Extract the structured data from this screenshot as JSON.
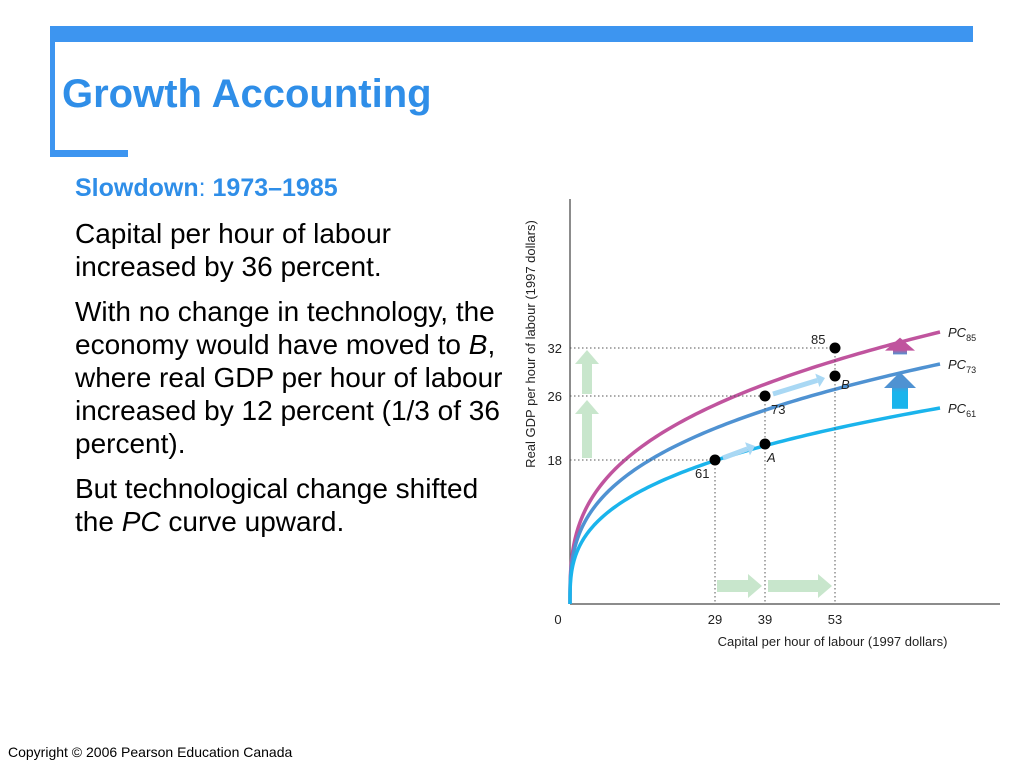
{
  "slide": {
    "title": "Growth Accounting",
    "subheading": {
      "label": "Slowdown",
      "colon": ":",
      "period": " 1973–1985"
    },
    "paragraphs": [
      [
        "Capital per hour of labour increased by 36 percent."
      ],
      [
        "With no change in technology, the economy would have moved to ",
        "B",
        ", where real GDP per hour of labour increased by 12 percent (1/3 of 36 percent)."
      ],
      [
        "But technological change shifted the ",
        "PC",
        " curve upward."
      ]
    ],
    "copyright": "Copyright © 2006 Pearson Education Canada"
  },
  "colors": {
    "accent": "#3d95f0",
    "pc85": "#c0549e",
    "pc73": "#4f92d2",
    "pc61": "#1ab4ec",
    "green_arrow": "#c8e6cc"
  },
  "chart_data": {
    "type": "line",
    "xlabel": "Capital per hour of labour (1997 dollars)",
    "ylabel": "Real GDP per hour of labour (1997 dollars)",
    "origin_label": "0",
    "xlim": [
      0,
      85
    ],
    "ylim": [
      0,
      50
    ],
    "x_ticks": [
      29,
      39,
      53
    ],
    "y_ticks": [
      18,
      26,
      32
    ],
    "series": [
      {
        "name": "PC",
        "sub": "85",
        "color": "#c0549e",
        "x_end": 74,
        "y_end": 34
      },
      {
        "name": "PC",
        "sub": "73",
        "color": "#4f92d2",
        "x_end": 74,
        "y_end": 30
      },
      {
        "name": "PC",
        "sub": "61",
        "color": "#1ab4ec",
        "x_end": 74,
        "y_end": 24.5
      }
    ],
    "points": [
      {
        "label": "61",
        "x": 29,
        "y": 18
      },
      {
        "label": "A",
        "x": 39,
        "y": 20,
        "italic": true
      },
      {
        "label": "73",
        "x": 39,
        "y": 26
      },
      {
        "label": "B",
        "x": 53,
        "y": 28.5,
        "italic": true
      },
      {
        "label": "85",
        "x": 53,
        "y": 32
      }
    ]
  }
}
